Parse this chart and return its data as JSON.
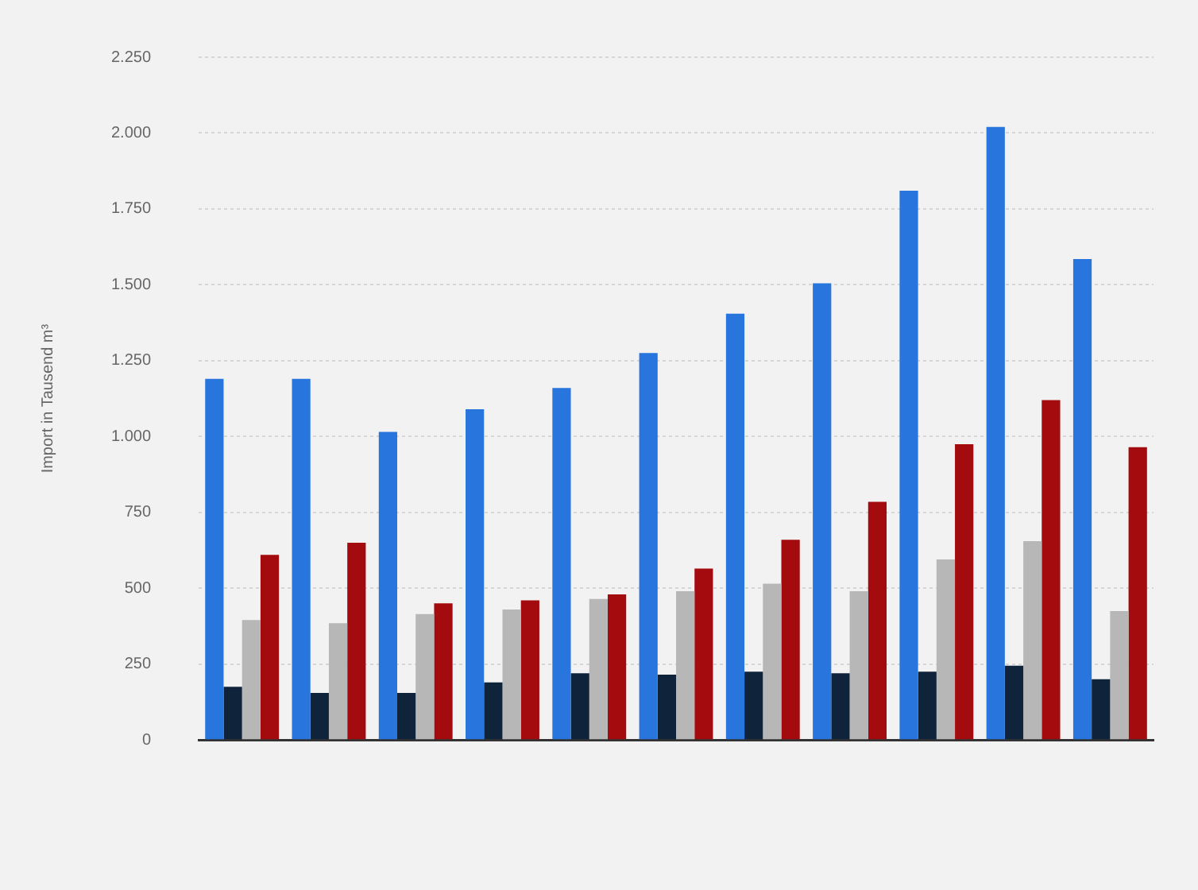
{
  "chart_data": {
    "type": "bar",
    "ylabel": "Import in Tausend m³",
    "categories": [
      null,
      null,
      null,
      null,
      null,
      null,
      null,
      null,
      null,
      null,
      null
    ],
    "series": [
      {
        "color": "#2876dd",
        "values": [
          1190,
          1190,
          1015,
          1090,
          1160,
          1275,
          1405,
          1505,
          1810,
          2020,
          1585
        ]
      },
      {
        "color": "#0f243a",
        "values": [
          175,
          155,
          155,
          190,
          220,
          215,
          225,
          220,
          225,
          245,
          200
        ]
      },
      {
        "color": "#b7b7b7",
        "values": [
          395,
          385,
          415,
          430,
          465,
          490,
          515,
          490,
          595,
          655,
          425
        ]
      },
      {
        "color": "#a30b0e",
        "values": [
          610,
          650,
          450,
          460,
          480,
          565,
          660,
          785,
          975,
          1120,
          965
        ]
      }
    ],
    "ylim": [
      0,
      2250
    ],
    "yticks": [
      0,
      250,
      500,
      750,
      {
        "value": 1000,
        "label": "1.000"
      },
      {
        "value": 1250,
        "label": "1.250"
      },
      {
        "value": 1500,
        "label": "1.500"
      },
      {
        "value": 1750,
        "label": "1.750"
      },
      {
        "value": 2000,
        "label": "2.000"
      },
      {
        "value": 2250,
        "label": "2.250"
      }
    ],
    "grid": "y",
    "legend": false
  }
}
